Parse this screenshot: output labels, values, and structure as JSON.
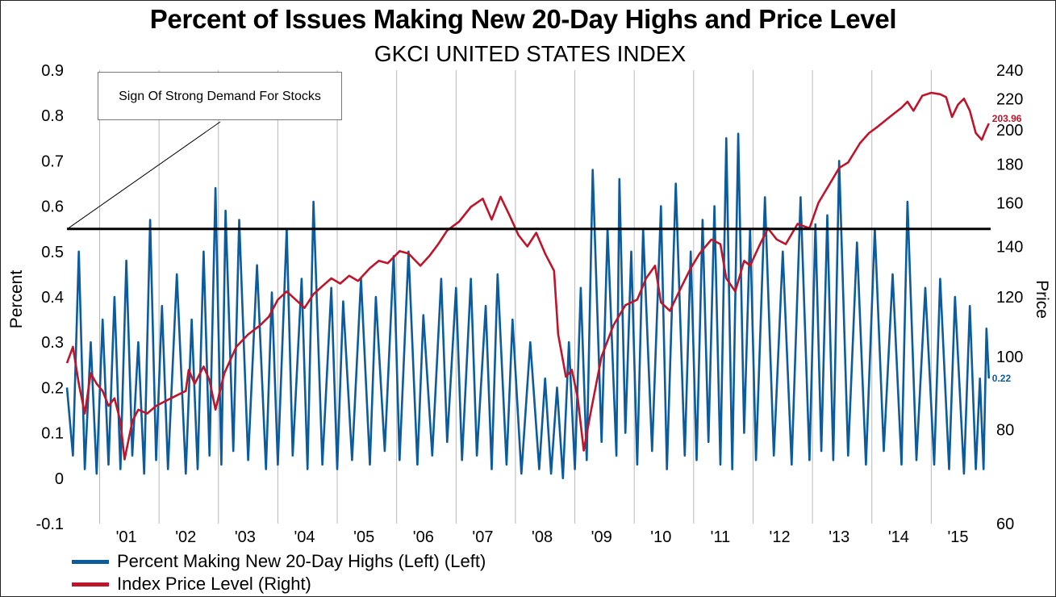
{
  "title": "Percent of Issues  Making New 20-Day Highs and Price Level",
  "subtitle": "GKCI UNITED STATES INDEX",
  "annotation": "Sign Of Strong Demand For Stocks",
  "legend": [
    {
      "label": "Percent Making New 20-Day Highs (Left) (Left)",
      "color": "#0b5c9c"
    },
    {
      "label": "Index Price Level (Right)",
      "color": "#c0142a"
    }
  ],
  "chart_data": {
    "type": "line",
    "grid": "vertical year gridlines",
    "legend_position": "bottom-left",
    "x_axis": {
      "tick_labels": [
        "'01",
        "'02",
        "'03",
        "'04",
        "'05",
        "'06",
        "'07",
        "'08",
        "'09",
        "'10",
        "'11",
        "'12",
        "'13",
        "'14",
        "'15"
      ],
      "xlim": [
        2000.45,
        2016.0
      ]
    },
    "y_left": {
      "label": "Percent",
      "ylim": [
        -0.1,
        0.9
      ],
      "ticks": [
        -0.1,
        0,
        0.1,
        0.2,
        0.3,
        0.4,
        0.5,
        0.6,
        0.7,
        0.8,
        0.9
      ],
      "tick_labels": [
        "-0.1",
        "0",
        "0.1",
        "0.2",
        "0.3",
        "0.4",
        "0.5",
        "0.6",
        "0.7",
        "0.8",
        "0.9"
      ]
    },
    "y_right": {
      "label": "Price",
      "scale": "log",
      "ylim": [
        60,
        240
      ],
      "ticks": [
        60,
        80,
        100,
        120,
        140,
        160,
        180,
        200,
        220,
        240
      ],
      "tick_labels": [
        "60",
        "80",
        "100",
        "120",
        "140",
        "160",
        "180",
        "200",
        "220",
        "240"
      ]
    },
    "reference_line": {
      "axis": "left",
      "value": 0.55,
      "color": "#000000"
    },
    "series": [
      {
        "name": "Percent Making New 20-Day Highs (Left) (Left)",
        "axis": "left",
        "color": "#0b5c9c",
        "last_value_label": "0.22",
        "points": [
          [
            2000.45,
            0.2
          ],
          [
            2000.55,
            0.05
          ],
          [
            2000.65,
            0.5
          ],
          [
            2000.75,
            0.02
          ],
          [
            2000.85,
            0.3
          ],
          [
            2000.95,
            0.01
          ],
          [
            2001.05,
            0.35
          ],
          [
            2001.15,
            0.03
          ],
          [
            2001.25,
            0.4
          ],
          [
            2001.35,
            0.02
          ],
          [
            2001.45,
            0.48
          ],
          [
            2001.55,
            0.05
          ],
          [
            2001.65,
            0.3
          ],
          [
            2001.75,
            0.01
          ],
          [
            2001.85,
            0.57
          ],
          [
            2001.95,
            0.04
          ],
          [
            2002.05,
            0.38
          ],
          [
            2002.15,
            0.02
          ],
          [
            2002.3,
            0.45
          ],
          [
            2002.45,
            0.01
          ],
          [
            2002.55,
            0.35
          ],
          [
            2002.65,
            0.02
          ],
          [
            2002.75,
            0.5
          ],
          [
            2002.85,
            0.05
          ],
          [
            2002.95,
            0.64
          ],
          [
            2003.05,
            0.03
          ],
          [
            2003.12,
            0.59
          ],
          [
            2003.25,
            0.06
          ],
          [
            2003.35,
            0.57
          ],
          [
            2003.5,
            0.04
          ],
          [
            2003.65,
            0.47
          ],
          [
            2003.8,
            0.02
          ],
          [
            2003.9,
            0.41
          ],
          [
            2004.0,
            0.03
          ],
          [
            2004.15,
            0.55
          ],
          [
            2004.25,
            0.05
          ],
          [
            2004.4,
            0.44
          ],
          [
            2004.5,
            0.02
          ],
          [
            2004.6,
            0.61
          ],
          [
            2004.75,
            0.03
          ],
          [
            2004.9,
            0.42
          ],
          [
            2005.0,
            0.02
          ],
          [
            2005.1,
            0.39
          ],
          [
            2005.25,
            0.04
          ],
          [
            2005.4,
            0.44
          ],
          [
            2005.55,
            0.03
          ],
          [
            2005.65,
            0.4
          ],
          [
            2005.8,
            0.06
          ],
          [
            2005.95,
            0.49
          ],
          [
            2006.05,
            0.04
          ],
          [
            2006.2,
            0.5
          ],
          [
            2006.35,
            0.03
          ],
          [
            2006.45,
            0.36
          ],
          [
            2006.6,
            0.05
          ],
          [
            2006.75,
            0.44
          ],
          [
            2006.85,
            0.08
          ],
          [
            2007.0,
            0.42
          ],
          [
            2007.1,
            0.04
          ],
          [
            2007.25,
            0.44
          ],
          [
            2007.35,
            0.05
          ],
          [
            2007.5,
            0.38
          ],
          [
            2007.6,
            0.02
          ],
          [
            2007.7,
            0.45
          ],
          [
            2007.85,
            0.03
          ],
          [
            2007.95,
            0.35
          ],
          [
            2008.1,
            0.01
          ],
          [
            2008.25,
            0.3
          ],
          [
            2008.4,
            0.02
          ],
          [
            2008.5,
            0.22
          ],
          [
            2008.6,
            0.01
          ],
          [
            2008.7,
            0.2
          ],
          [
            2008.8,
            0.0
          ],
          [
            2008.9,
            0.3
          ],
          [
            2009.0,
            0.02
          ],
          [
            2009.1,
            0.42
          ],
          [
            2009.2,
            0.04
          ],
          [
            2009.3,
            0.68
          ],
          [
            2009.45,
            0.08
          ],
          [
            2009.55,
            0.55
          ],
          [
            2009.7,
            0.05
          ],
          [
            2009.75,
            0.66
          ],
          [
            2009.85,
            0.1
          ],
          [
            2009.95,
            0.5
          ],
          [
            2010.05,
            0.03
          ],
          [
            2010.15,
            0.55
          ],
          [
            2010.3,
            0.06
          ],
          [
            2010.45,
            0.6
          ],
          [
            2010.55,
            0.02
          ],
          [
            2010.7,
            0.65
          ],
          [
            2010.85,
            0.05
          ],
          [
            2010.95,
            0.5
          ],
          [
            2011.05,
            0.04
          ],
          [
            2011.15,
            0.57
          ],
          [
            2011.25,
            0.08
          ],
          [
            2011.35,
            0.6
          ],
          [
            2011.45,
            0.03
          ],
          [
            2011.55,
            0.75
          ],
          [
            2011.65,
            0.02
          ],
          [
            2011.75,
            0.76
          ],
          [
            2011.85,
            0.1
          ],
          [
            2011.95,
            0.55
          ],
          [
            2012.05,
            0.04
          ],
          [
            2012.2,
            0.62
          ],
          [
            2012.35,
            0.05
          ],
          [
            2012.5,
            0.5
          ],
          [
            2012.65,
            0.03
          ],
          [
            2012.8,
            0.62
          ],
          [
            2012.95,
            0.04
          ],
          [
            2013.05,
            0.56
          ],
          [
            2013.15,
            0.06
          ],
          [
            2013.25,
            0.58
          ],
          [
            2013.35,
            0.04
          ],
          [
            2013.45,
            0.7
          ],
          [
            2013.6,
            0.05
          ],
          [
            2013.75,
            0.52
          ],
          [
            2013.9,
            0.03
          ],
          [
            2014.05,
            0.55
          ],
          [
            2014.2,
            0.06
          ],
          [
            2014.35,
            0.45
          ],
          [
            2014.5,
            0.03
          ],
          [
            2014.6,
            0.61
          ],
          [
            2014.75,
            0.04
          ],
          [
            2014.9,
            0.42
          ],
          [
            2015.05,
            0.03
          ],
          [
            2015.15,
            0.44
          ],
          [
            2015.3,
            0.02
          ],
          [
            2015.4,
            0.4
          ],
          [
            2015.55,
            0.01
          ],
          [
            2015.65,
            0.38
          ],
          [
            2015.75,
            0.02
          ],
          [
            2015.82,
            0.22
          ],
          [
            2015.88,
            0.02
          ],
          [
            2015.93,
            0.33
          ],
          [
            2015.97,
            0.22
          ]
        ]
      },
      {
        "name": "Index Price Level (Right)",
        "axis": "right",
        "color": "#c0142a",
        "last_value_label": "203.96",
        "points": [
          [
            2000.45,
            98
          ],
          [
            2000.55,
            103
          ],
          [
            2000.65,
            92
          ],
          [
            2000.75,
            84
          ],
          [
            2000.85,
            95
          ],
          [
            2000.95,
            92
          ],
          [
            2001.05,
            90
          ],
          [
            2001.15,
            86
          ],
          [
            2001.25,
            88
          ],
          [
            2001.35,
            82
          ],
          [
            2001.42,
            73
          ],
          [
            2001.55,
            82
          ],
          [
            2001.65,
            85
          ],
          [
            2001.8,
            84
          ],
          [
            2001.95,
            86
          ],
          [
            2002.2,
            88
          ],
          [
            2002.45,
            90
          ],
          [
            2002.5,
            96
          ],
          [
            2002.6,
            92
          ],
          [
            2002.75,
            97
          ],
          [
            2002.85,
            93
          ],
          [
            2002.95,
            85
          ],
          [
            2003.1,
            95
          ],
          [
            2003.3,
            103
          ],
          [
            2003.5,
            107
          ],
          [
            2003.7,
            110
          ],
          [
            2003.85,
            113
          ],
          [
            2004.0,
            119
          ],
          [
            2004.15,
            122
          ],
          [
            2004.35,
            118
          ],
          [
            2004.45,
            116
          ],
          [
            2004.6,
            121
          ],
          [
            2004.75,
            124
          ],
          [
            2004.9,
            127
          ],
          [
            2005.05,
            125
          ],
          [
            2005.2,
            128
          ],
          [
            2005.35,
            126
          ],
          [
            2005.55,
            131
          ],
          [
            2005.7,
            134
          ],
          [
            2005.85,
            133
          ],
          [
            2006.05,
            138
          ],
          [
            2006.2,
            137
          ],
          [
            2006.4,
            132
          ],
          [
            2006.55,
            136
          ],
          [
            2006.7,
            141
          ],
          [
            2006.85,
            147
          ],
          [
            2007.05,
            151
          ],
          [
            2007.25,
            158
          ],
          [
            2007.45,
            162
          ],
          [
            2007.6,
            152
          ],
          [
            2007.75,
            163
          ],
          [
            2007.9,
            154
          ],
          [
            2008.05,
            145
          ],
          [
            2008.2,
            140
          ],
          [
            2008.35,
            146
          ],
          [
            2008.5,
            137
          ],
          [
            2008.65,
            130
          ],
          [
            2008.72,
            107
          ],
          [
            2008.85,
            94
          ],
          [
            2008.95,
            96
          ],
          [
            2009.05,
            88
          ],
          [
            2009.15,
            75
          ],
          [
            2009.25,
            83
          ],
          [
            2009.45,
            100
          ],
          [
            2009.65,
            110
          ],
          [
            2009.85,
            117
          ],
          [
            2010.05,
            119
          ],
          [
            2010.2,
            127
          ],
          [
            2010.35,
            132
          ],
          [
            2010.45,
            118
          ],
          [
            2010.6,
            115
          ],
          [
            2010.8,
            124
          ],
          [
            2010.95,
            131
          ],
          [
            2011.1,
            137
          ],
          [
            2011.3,
            143
          ],
          [
            2011.45,
            141
          ],
          [
            2011.55,
            127
          ],
          [
            2011.7,
            122
          ],
          [
            2011.85,
            134
          ],
          [
            2011.95,
            132
          ],
          [
            2012.1,
            140
          ],
          [
            2012.25,
            148
          ],
          [
            2012.4,
            143
          ],
          [
            2012.55,
            141
          ],
          [
            2012.75,
            150
          ],
          [
            2012.95,
            148
          ],
          [
            2013.1,
            160
          ],
          [
            2013.3,
            170
          ],
          [
            2013.45,
            178
          ],
          [
            2013.6,
            181
          ],
          [
            2013.8,
            192
          ],
          [
            2013.95,
            198
          ],
          [
            2014.1,
            202
          ],
          [
            2014.3,
            208
          ],
          [
            2014.5,
            214
          ],
          [
            2014.6,
            218
          ],
          [
            2014.7,
            212
          ],
          [
            2014.85,
            222
          ],
          [
            2015.0,
            224
          ],
          [
            2015.15,
            223
          ],
          [
            2015.25,
            221
          ],
          [
            2015.35,
            208
          ],
          [
            2015.45,
            216
          ],
          [
            2015.55,
            220
          ],
          [
            2015.65,
            212
          ],
          [
            2015.75,
            198
          ],
          [
            2015.85,
            194
          ],
          [
            2015.92,
            200
          ],
          [
            2015.97,
            203.96
          ]
        ]
      }
    ]
  }
}
